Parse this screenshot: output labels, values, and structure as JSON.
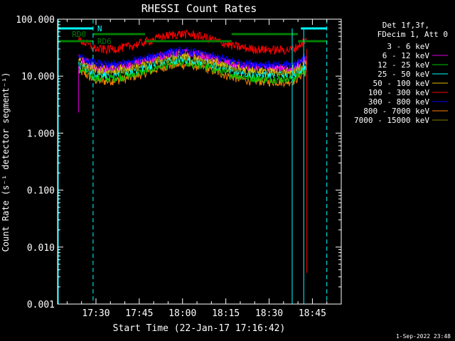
{
  "chart_data": {
    "type": "line",
    "title": "RHESSI Count Rates",
    "xlabel": "Start Time (22-Jan-17 17:16:42)",
    "ylabel": "Count Rate (s⁻¹ detector segment⁻¹)",
    "ylim": [
      0.001,
      100
    ],
    "yscale": "log",
    "xlim_minutes_after_start": [
      0,
      98.3
    ],
    "x_tick_labels": [
      "17:30",
      "17:45",
      "18:00",
      "18:15",
      "18:30",
      "18:45"
    ],
    "x_tick_times": [
      "17:30",
      "17:45",
      "18:00",
      "18:15",
      "18:30",
      "18:45"
    ],
    "y_tick_labels": [
      "0.001",
      "0.010",
      "0.100",
      "1.000",
      "10.000",
      "100.000"
    ],
    "y_tick_values": [
      0.001,
      0.01,
      0.1,
      1,
      10,
      100
    ],
    "legend_header": [
      "Det 1f,3f,",
      "FDecim 1, Att 0"
    ],
    "legend_position": "top-right",
    "footer_date": "1-Sep-2022 23:48",
    "data_start": "17:24",
    "data_end": "18:43",
    "peak_time": "18:00",
    "series": [
      {
        "name": "3 - 6 keV",
        "color": "#000000",
        "base": [
          20,
          34
        ]
      },
      {
        "name": "6 - 12 keV",
        "color": "#e000e0",
        "base": [
          14,
          26
        ]
      },
      {
        "name": "12 - 25 keV",
        "color": "#00c800",
        "base": [
          9,
          17
        ]
      },
      {
        "name": "25 - 50 keV",
        "color": "#00ffff",
        "base": [
          11,
          20
        ]
      },
      {
        "name": "50 - 100 keV",
        "color": "#e0c000",
        "base": [
          13,
          24
        ]
      },
      {
        "name": "100 - 300 keV",
        "color": "#ff0000",
        "base": [
          29,
          55
        ]
      },
      {
        "name": "300 - 800 keV",
        "color": "#0000ff",
        "base": [
          16,
          28
        ]
      },
      {
        "name": "800 - 7000 keV",
        "color": "#ff8000",
        "base": [
          8,
          16
        ]
      },
      {
        "name": "7000 - 15000 keV",
        "color": "#808000",
        "base": [
          12,
          21
        ]
      }
    ],
    "annotations": [
      {
        "label": "N",
        "color": "#00ffff"
      },
      {
        "label": "RD0",
        "color": "#008000"
      },
      {
        "label": "RD6",
        "color": "#008000"
      }
    ],
    "night_bars": [
      {
        "start": "17:17",
        "end": "17:29"
      },
      {
        "start": "18:41",
        "end": "18:50"
      }
    ],
    "rd0_bars": [
      {
        "start": "17:29",
        "end": "17:47"
      },
      {
        "start": "18:17",
        "end": "18:40"
      }
    ],
    "rd6_bars": [
      {
        "start": "17:17",
        "end": "17:29"
      },
      {
        "start": "17:47",
        "end": "18:17"
      },
      {
        "start": "18:40",
        "end": "18:50"
      }
    ],
    "dashed_verticals": [
      "17:29",
      "18:50"
    ],
    "solid_verticals": [
      "18:38",
      "18:42"
    ]
  }
}
